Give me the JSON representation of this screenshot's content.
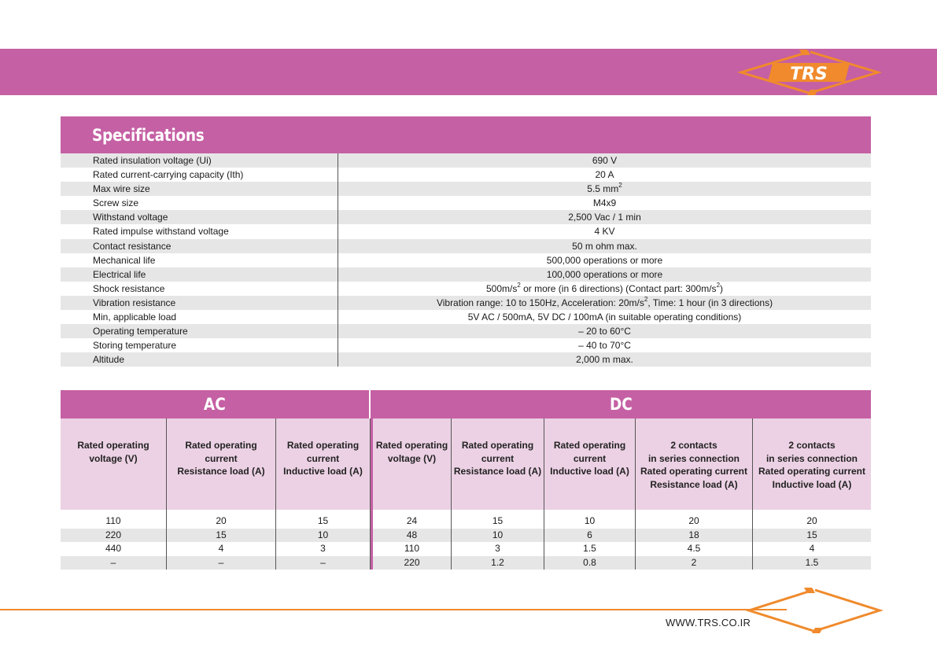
{
  "brand": {
    "logo_text": "TRS",
    "website": "WWW.TRS.CO.IR",
    "colors": {
      "band": "#c560a4",
      "accent": "#f08a2c",
      "header_cells": "#ecd1e4",
      "row_alt": "#e6e6e6"
    }
  },
  "specifications": {
    "title": "Specifications",
    "rows": [
      {
        "label": "Rated insulation voltage (Ui)",
        "value": "690 V"
      },
      {
        "label": "Rated current-carrying capacity (Ith)",
        "value": "20 A"
      },
      {
        "label": "Max wire size",
        "value": "5.5 mm",
        "value_sup": "2"
      },
      {
        "label": "Screw size",
        "value": "M4x9"
      },
      {
        "label": "Withstand voltage",
        "value": "2,500 Vac / 1 min"
      },
      {
        "label": "Rated impulse withstand voltage",
        "value": "4 KV"
      },
      {
        "label": "Contact resistance",
        "value": "50 m ohm max."
      },
      {
        "label": "Mechanical life",
        "value": "500,000 operations or more"
      },
      {
        "label": "Electrical life",
        "value": "100,000 operations or more"
      },
      {
        "label": "Shock resistance",
        "value_a": "500m/s",
        "value_b": " or more (in 6 directions) (Contact part: 300m/s",
        "value_c": ")",
        "sup": "2"
      },
      {
        "label": "Vibration resistance",
        "value_a": "Vibration range: 10 to 150Hz, Acceleration: 20m/s",
        "value_b": ", Time: 1 hour (in 3 directions)",
        "sup": "2"
      },
      {
        "label": "Min, applicable load",
        "value": "5V AC / 500mA, 5V DC / 100mA (in suitable operating conditions)"
      },
      {
        "label": "Operating temperature",
        "value": "– 20 to 60°C"
      },
      {
        "label": "Storing temperature",
        "value": "– 40 to 70°C"
      },
      {
        "label": "Altitude",
        "value": "2,000 m max."
      }
    ]
  },
  "ratings": {
    "groups": {
      "ac": "AC",
      "dc": "DC"
    },
    "columns": [
      {
        "lines": [
          "Rated operating",
          "voltage (V)"
        ]
      },
      {
        "lines": [
          "Rated operating",
          "current",
          "Resistance load (A)"
        ]
      },
      {
        "lines": [
          "Rated operating",
          "current",
          "Inductive load (A)"
        ]
      },
      {
        "lines": [
          "Rated operating",
          "voltage (V)"
        ]
      },
      {
        "lines": [
          "Rated operating",
          "current",
          "Resistance load (A)"
        ]
      },
      {
        "lines": [
          "Rated operating",
          "current",
          "Inductive load (A)"
        ]
      },
      {
        "lines": [
          "2 contacts",
          "in series connection",
          "Rated operating current",
          "Resistance load (A)"
        ]
      },
      {
        "lines": [
          "2 contacts",
          "in series connection",
          "Rated operating current",
          "Inductive load (A)"
        ]
      }
    ],
    "rows": [
      [
        "110",
        "20",
        "15",
        "24",
        "15",
        "10",
        "20",
        "20"
      ],
      [
        "220",
        "15",
        "10",
        "48",
        "10",
        "6",
        "18",
        "15"
      ],
      [
        "440",
        "4",
        "3",
        "110",
        "3",
        "1.5",
        "4.5",
        "4"
      ],
      [
        "–",
        "–",
        "–",
        "220",
        "1.2",
        "0.8",
        "2",
        "1.5"
      ]
    ]
  }
}
